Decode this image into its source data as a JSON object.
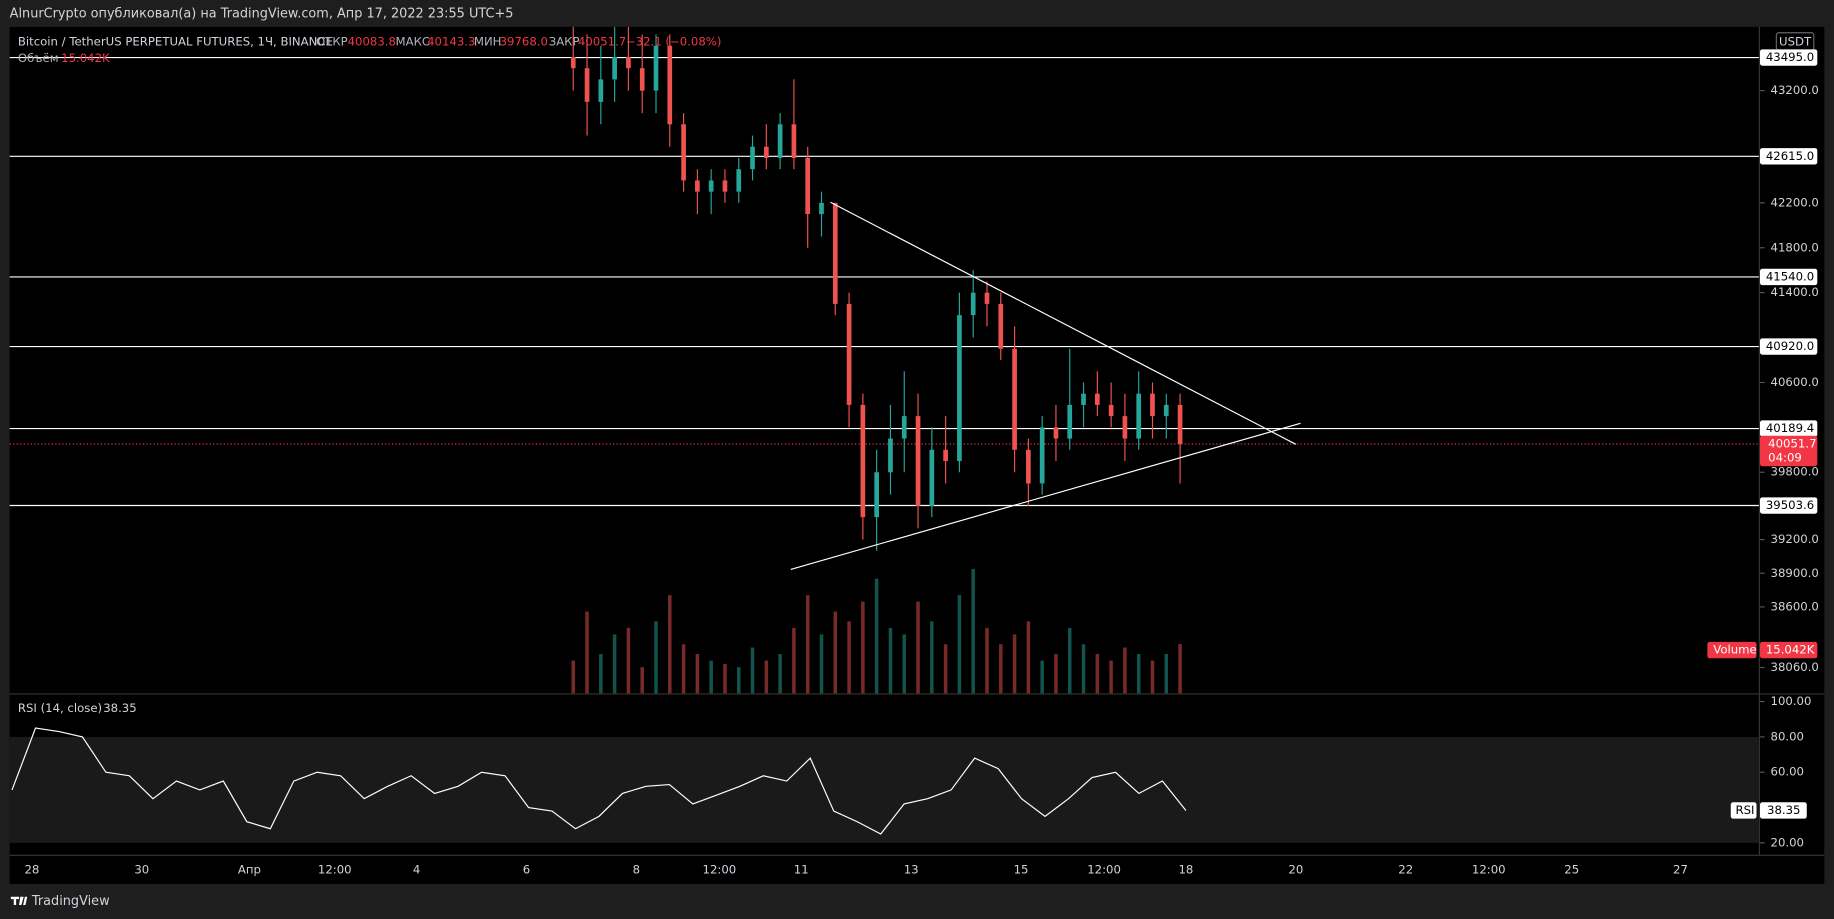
{
  "header": {
    "text": "AlnurCrypto опубликовал(а) на TradingView.com, Апр 17, 2022 23:55 UTC+5"
  },
  "chart_data": {
    "type": "candlestick",
    "title": "Bitcoin / TetherUS PERPETUAL FUTURES, 1Ч, BINANCE",
    "readout": {
      "open_label": "ОТКР",
      "open": 40083.8,
      "high_label": "МАКС",
      "high": 40143.3,
      "low_label": "МИН",
      "low": {
        "value": 39768,
        "label": "39768.0"
      },
      "close_label": "ЗАКР",
      "close": 40051.7,
      "change": "−32.1 (−0.08%)"
    },
    "colors": {
      "up": "#26a69a",
      "down": "#ef5350"
    },
    "open": [
      43500,
      43400,
      43100,
      43300,
      43500,
      43400,
      43200,
      43600,
      42900,
      42400,
      42300,
      42400,
      42300,
      42500,
      42700,
      42600,
      42900,
      42600,
      42100,
      42200,
      41300,
      40400,
      39400,
      39800,
      40100,
      40300,
      39500,
      40000,
      39900,
      41200,
      41400,
      41300,
      40900,
      40000,
      39700,
      40200,
      40100,
      40400,
      40500,
      40400,
      40300,
      40100,
      40500,
      40300,
      40400
    ],
    "high": [
      43800,
      43700,
      43600,
      43800,
      43800,
      43700,
      43700,
      43700,
      43000,
      42500,
      42500,
      42500,
      42600,
      42800,
      42900,
      43000,
      43300,
      42700,
      42300,
      42200,
      41400,
      40500,
      40000,
      40400,
      40700,
      40500,
      40200,
      40300,
      41400,
      41600,
      41500,
      41400,
      41100,
      40100,
      40300,
      40400,
      40900,
      40600,
      40700,
      40600,
      40500,
      40700,
      40600,
      40500,
      40500
    ],
    "low": [
      43200,
      42800,
      42900,
      43100,
      43200,
      43000,
      43000,
      42700,
      42300,
      42100,
      42100,
      42200,
      42200,
      42400,
      42500,
      42500,
      42500,
      41800,
      41900,
      41200,
      40200,
      39200,
      39100,
      39600,
      39800,
      39300,
      39400,
      39700,
      39800,
      41000,
      41100,
      40800,
      39800,
      39500,
      39600,
      39900,
      40000,
      40200,
      40300,
      40200,
      39900,
      40000,
      40100,
      40100,
      39700
    ],
    "close": [
      43400,
      43100,
      43300,
      43500,
      43400,
      43200,
      43600,
      42900,
      42400,
      42300,
      42400,
      42300,
      42500,
      42700,
      42600,
      42900,
      42600,
      42100,
      42200,
      41300,
      40400,
      39400,
      39800,
      40100,
      40300,
      39500,
      40000,
      39900,
      41200,
      41400,
      41300,
      40900,
      40000,
      39700,
      40200,
      40100,
      40400,
      40500,
      40400,
      40300,
      40100,
      40500,
      40300,
      40400,
      40051.7
    ],
    "ylim": [
      37830,
      43768
    ],
    "yticks": [
      {
        "value": 43200,
        "label": "43200.0"
      },
      {
        "value": 42200,
        "label": "42200.0"
      },
      {
        "value": 41800,
        "label": "41800.0"
      },
      {
        "value": 41400,
        "label": "41400.0"
      },
      {
        "value": 40600,
        "label": "40600.0"
      },
      {
        "value": 39800,
        "label": "39800.0"
      },
      {
        "value": 39200,
        "label": "39200.0"
      },
      {
        "value": 38900,
        "label": "38900.0"
      },
      {
        "value": 38600,
        "label": "38600.0"
      },
      {
        "value": 38060,
        "label": "38060.0"
      }
    ],
    "currency": "USDT",
    "levels": [
      {
        "value": 43495,
        "label": "43495.0"
      },
      {
        "value": 42615,
        "label": "42615.0"
      },
      {
        "value": 41540,
        "label": "41540.0"
      },
      {
        "value": 40920,
        "label": "40920.0"
      },
      {
        "value": 40189.4,
        "label": "40189.4"
      },
      {
        "value": 39503.6,
        "label": "39503.6"
      }
    ],
    "last_price": 40051.7,
    "countdown": "04:09",
    "time_labels": [
      "28",
      "30",
      "Апр",
      "12:00",
      "4",
      "6",
      "8",
      "12:00",
      "11",
      "13",
      "15",
      "12:00",
      "18",
      "20",
      "22",
      "12:00",
      "25",
      "27"
    ],
    "volume": {
      "name": "Volume",
      "legend_name": "Объём",
      "values": [
        10,
        25,
        12,
        18,
        20,
        8,
        22,
        30,
        15,
        12,
        10,
        9,
        8,
        14,
        10,
        12,
        20,
        30,
        18,
        25,
        22,
        28,
        35,
        20,
        18,
        28,
        22,
        15,
        30,
        38,
        20,
        15,
        18,
        22,
        10,
        12,
        20,
        15,
        12,
        10,
        14,
        12,
        10,
        12,
        15.042
      ],
      "last_label": "15.042K",
      "ylim": [
        0,
        50
      ]
    }
  },
  "rsi": {
    "title": "RSI (14, close)",
    "name": "RSI",
    "values": [
      50,
      85,
      83,
      80,
      60,
      58,
      45,
      55,
      50,
      55,
      32,
      28,
      55,
      60,
      58,
      45,
      52,
      58,
      48,
      52,
      60,
      58,
      40,
      38,
      28,
      35,
      48,
      52,
      53,
      42,
      47,
      52,
      58,
      55,
      68,
      38,
      32,
      25,
      42,
      45,
      50,
      68,
      62,
      45,
      35,
      45,
      57,
      60,
      48,
      55,
      38.35
    ],
    "last": 38.35,
    "ylim": [
      13.3,
      104
    ],
    "yticks": [
      {
        "value": 100,
        "label": "100.00"
      },
      {
        "value": 80,
        "label": "80.00"
      },
      {
        "value": 60,
        "label": "60.00"
      },
      {
        "value": 20,
        "label": "20.00"
      }
    ],
    "band": [
      20,
      80
    ]
  },
  "footer": {
    "brand": "TradingView"
  }
}
